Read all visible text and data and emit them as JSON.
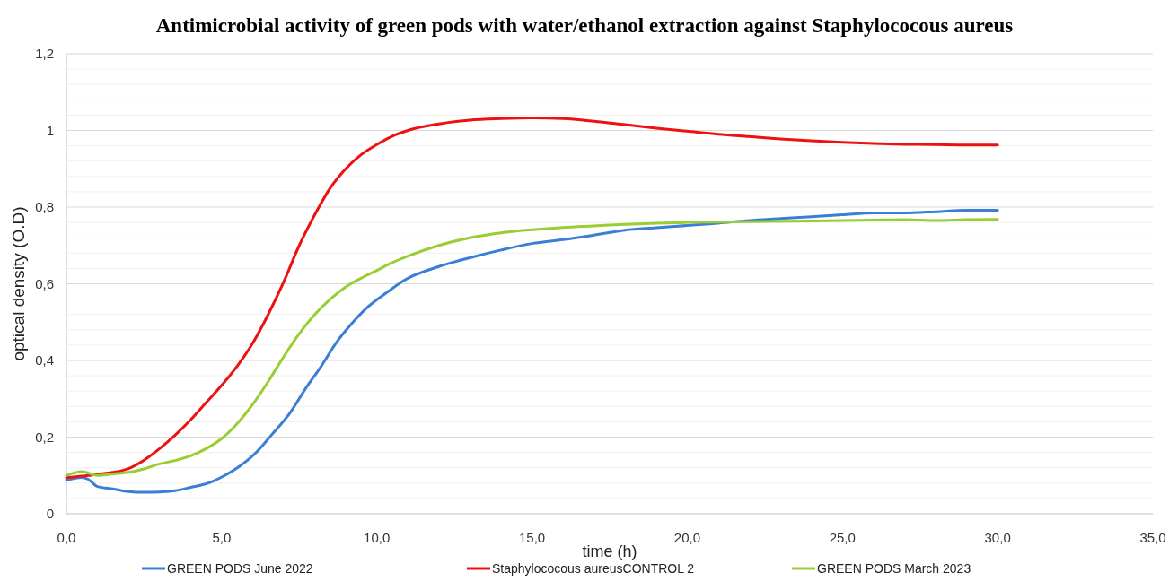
{
  "chart_data": {
    "type": "line",
    "title": "Antimicrobial activity of green pods with water/ethanol extraction against Staphylococous aureus",
    "xlabel": "time (h)",
    "ylabel": "optical density (O.D)",
    "xlim": [
      0,
      35
    ],
    "ylim": [
      0,
      1.2
    ],
    "xticks": [
      {
        "value": 0,
        "label": "0,0"
      },
      {
        "value": 5,
        "label": "5,0"
      },
      {
        "value": 10,
        "label": "10,0"
      },
      {
        "value": 15,
        "label": "15,0"
      },
      {
        "value": 20,
        "label": "20,0"
      },
      {
        "value": 25,
        "label": "25,0"
      },
      {
        "value": 30,
        "label": "30,0"
      },
      {
        "value": 35,
        "label": "35,0"
      }
    ],
    "yticks": [
      0,
      {
        "value": 0.04,
        "label": null
      },
      {
        "value": 0.08,
        "label": null
      },
      {
        "value": 0.12,
        "label": null
      },
      {
        "value": 0.16,
        "label": null
      },
      {
        "value": 0.2,
        "label": "0,2"
      },
      {
        "value": 0.24,
        "label": null
      },
      {
        "value": 0.28,
        "label": null
      },
      {
        "value": 0.32,
        "label": null
      },
      {
        "value": 0.36,
        "label": null
      },
      {
        "value": 0.4,
        "label": "0,4"
      },
      {
        "value": 0.44,
        "label": null
      },
      {
        "value": 0.48,
        "label": null
      },
      {
        "value": 0.52,
        "label": null
      },
      {
        "value": 0.56,
        "label": null
      },
      {
        "value": 0.6,
        "label": "0,6"
      },
      {
        "value": 0.64,
        "label": null
      },
      {
        "value": 0.68,
        "label": null
      },
      {
        "value": 0.72,
        "label": null
      },
      {
        "value": 0.76,
        "label": null
      },
      {
        "value": 0.8,
        "label": "0,8"
      },
      {
        "value": 0.84,
        "label": null
      },
      {
        "value": 0.88,
        "label": null
      },
      {
        "value": 0.92,
        "label": null
      },
      {
        "value": 0.96,
        "label": null
      },
      1,
      {
        "value": 1.04,
        "label": null
      },
      {
        "value": 1.08,
        "label": null
      },
      {
        "value": 1.12,
        "label": null
      },
      {
        "value": 1.16,
        "label": null
      },
      {
        "value": 1.2,
        "label": "1,2"
      }
    ],
    "grid": "y",
    "legend": "bottom",
    "marker": "none",
    "line_style": "solid",
    "series": [
      {
        "name": "GREEN PODS June 2022",
        "color": "#3a7fd5",
        "x": [
          0,
          0.5,
          0.7,
          1,
          1.5,
          2,
          2.5,
          3,
          3.5,
          4,
          4.6,
          5.1,
          5.6,
          6.1,
          6.6,
          7.2,
          7.7,
          8.2,
          8.7,
          9.2,
          9.7,
          10.3,
          10.9,
          12,
          13,
          14,
          15,
          16,
          17,
          18,
          19,
          20,
          21,
          22,
          23,
          24,
          25,
          26,
          27,
          28,
          29,
          30
        ],
        "values": [
          0.088,
          0.095,
          0.09,
          0.071,
          0.065,
          0.058,
          0.056,
          0.057,
          0.06,
          0.069,
          0.081,
          0.1,
          0.125,
          0.159,
          0.205,
          0.263,
          0.326,
          0.384,
          0.447,
          0.497,
          0.539,
          0.576,
          0.61,
          0.645,
          0.668,
          0.688,
          0.705,
          0.715,
          0.727,
          0.74,
          0.746,
          0.752,
          0.758,
          0.765,
          0.77,
          0.775,
          0.78,
          0.785,
          0.785,
          0.788,
          0.792,
          0.792
        ]
      },
      {
        "name": "Staphylococous aureusCONTROL 2",
        "color": "#ee1111",
        "x": [
          0,
          0.5,
          1,
          1.5,
          2,
          2.5,
          3,
          3.5,
          4,
          4.5,
          5,
          5.5,
          6,
          6.5,
          7,
          7.5,
          8,
          8.5,
          9,
          9.5,
          10,
          10.5,
          11,
          12,
          13,
          14,
          15,
          16,
          17,
          18,
          19,
          20,
          21,
          22,
          23,
          24,
          25,
          26,
          27,
          28,
          29,
          30
        ],
        "values": [
          0.094,
          0.098,
          0.103,
          0.108,
          0.118,
          0.14,
          0.17,
          0.205,
          0.245,
          0.29,
          0.335,
          0.385,
          0.445,
          0.52,
          0.605,
          0.7,
          0.78,
          0.85,
          0.9,
          0.937,
          0.963,
          0.985,
          1.0,
          1.017,
          1.027,
          1.031,
          1.033,
          1.031,
          1.024,
          1.015,
          1.006,
          0.998,
          0.99,
          0.984,
          0.978,
          0.973,
          0.969,
          0.966,
          0.964,
          0.963,
          0.962,
          0.962
        ]
      },
      {
        "name": "GREEN PODS March 2023",
        "color": "#9acd32",
        "x": [
          0,
          0.5,
          1,
          1.5,
          2,
          2.5,
          3,
          3.5,
          4,
          4.5,
          5,
          5.5,
          6,
          6.5,
          7,
          7.5,
          8,
          8.5,
          9,
          9.5,
          10,
          10.5,
          11,
          12,
          13,
          14,
          15,
          16,
          17,
          18,
          19,
          20,
          22,
          24,
          26,
          27,
          28,
          29,
          30
        ],
        "values": [
          0.1,
          0.11,
          0.1,
          0.104,
          0.108,
          0.117,
          0.13,
          0.139,
          0.151,
          0.17,
          0.196,
          0.235,
          0.285,
          0.345,
          0.41,
          0.47,
          0.52,
          0.56,
          0.592,
          0.615,
          0.635,
          0.655,
          0.672,
          0.7,
          0.72,
          0.733,
          0.741,
          0.747,
          0.751,
          0.755,
          0.758,
          0.76,
          0.762,
          0.764,
          0.766,
          0.767,
          0.765,
          0.767,
          0.768
        ]
      }
    ]
  }
}
